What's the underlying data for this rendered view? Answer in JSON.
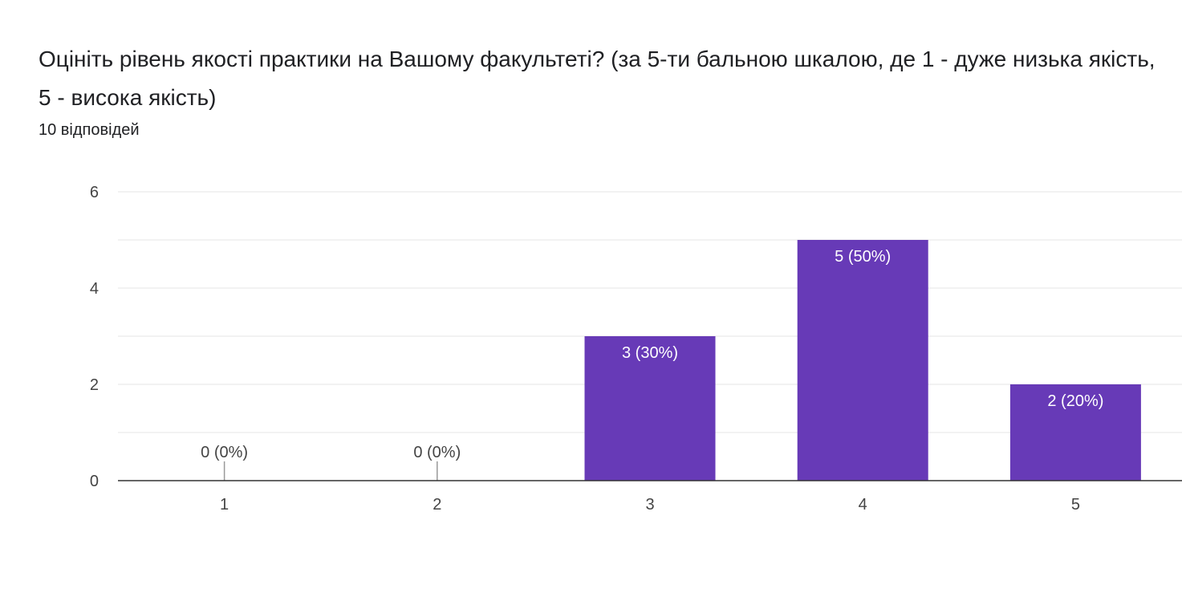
{
  "title": "Оцініть рівень якості практики на Вашому факультеті? (за 5-ти бальною шкалою, де 1 - дуже низька якість, 5 - висока якість)",
  "responses": "10 відповідей",
  "colors": {
    "bar": "#673ab7",
    "grid": "#e6e6e6",
    "axis": "#333333",
    "label_inside": "#ffffff",
    "label_outside": "#444444"
  },
  "chart_data": {
    "type": "bar",
    "categories": [
      "1",
      "2",
      "3",
      "4",
      "5"
    ],
    "values": [
      0,
      0,
      3,
      5,
      2
    ],
    "data_labels": [
      "0 (0%)",
      "0 (0%)",
      "3 (30%)",
      "5 (50%)",
      "2 (20%)"
    ],
    "ylim": [
      0,
      6
    ],
    "yticks": [
      0,
      2,
      4,
      6
    ],
    "grid": true,
    "xlabel": "",
    "ylabel": ""
  }
}
